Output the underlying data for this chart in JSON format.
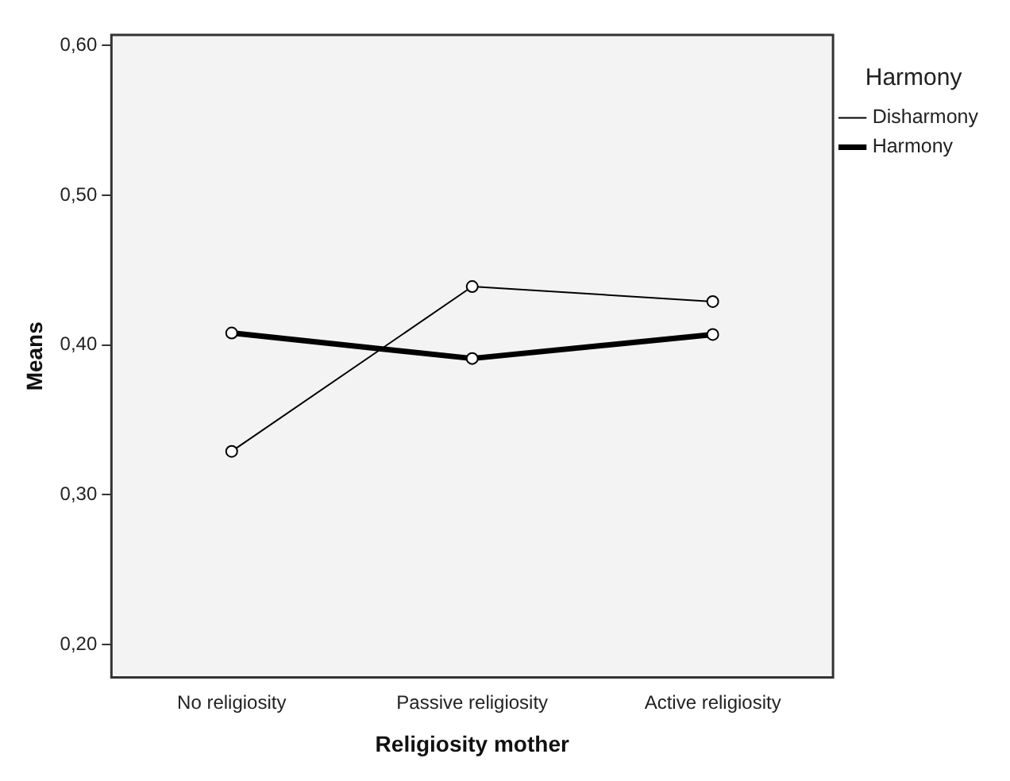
{
  "chart_data": {
    "type": "line",
    "xlabel": "Religiosity mother",
    "ylabel": "Means",
    "legend_title": "Harmony",
    "categories": [
      "No religiosity",
      "Passive religiosity",
      "Active religiosity"
    ],
    "series": [
      {
        "name": "Disharmony",
        "color": "#000000",
        "values": [
          0.329,
          0.439,
          0.429
        ]
      },
      {
        "name": "Harmony",
        "color": "#000000",
        "values": [
          0.408,
          0.391,
          0.407
        ]
      }
    ],
    "ylim": [
      0.178,
      0.607
    ],
    "yticks": [
      {
        "value": 0.2,
        "label": "0,20"
      },
      {
        "value": 0.3,
        "label": "0,30"
      },
      {
        "value": 0.4,
        "label": "0,40"
      },
      {
        "value": 0.5,
        "label": "0,50"
      },
      {
        "value": 0.6,
        "label": "0,60"
      }
    ],
    "grid": false,
    "legend": "top right",
    "marker": "circle",
    "line_style": "solid"
  }
}
